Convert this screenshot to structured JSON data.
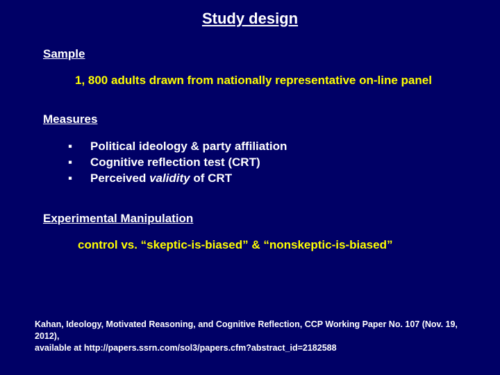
{
  "title": "Study design",
  "sections": {
    "sample": {
      "heading": "Sample",
      "text": "1, 800 adults drawn from nationally representative on-line panel"
    },
    "measures": {
      "heading": "Measures",
      "items": [
        "Political ideology & party affiliation",
        "Cognitive reflection test (CRT)"
      ],
      "item_validity_prefix": "Perceived ",
      "item_validity_italic": "validity",
      "item_validity_suffix": " of CRT"
    },
    "manipulation": {
      "heading": "Experimental Manipulation",
      "text": "control vs. “skeptic-is-biased” & “nonskeptic-is-biased”"
    }
  },
  "citation_line1": "Kahan, Ideology, Motivated Reasoning, and Cognitive Reflection, CCP Working Paper No. 107 (Nov. 19, 2012),",
  "citation_line2": "available at http://papers.ssrn.com/sol3/papers.cfm?abstract_id=2182588",
  "colors": {
    "background": "#000066",
    "text_white": "#ffffff",
    "text_yellow": "#ffff00"
  }
}
